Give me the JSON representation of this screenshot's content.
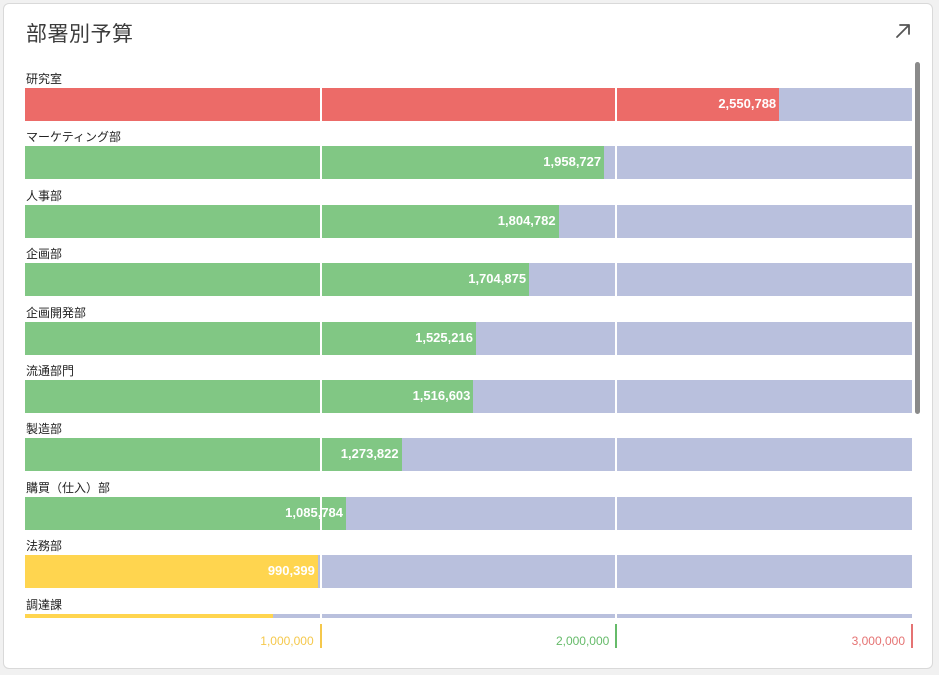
{
  "title": "部署別予算",
  "icons": {
    "expand": "arrow-up-right-icon"
  },
  "colors": {
    "red": "#ec6b68",
    "green": "#81c784",
    "yellow": "#ffd54f",
    "track": "#b9c0dd",
    "tick_yellow": "#f5c84c",
    "tick_green": "#66bb6a",
    "tick_red": "#e57373"
  },
  "chart_data": {
    "type": "bar",
    "orientation": "horizontal",
    "xlim": [
      0,
      3000000
    ],
    "thresholds": [
      {
        "value": 1000000,
        "label": "1,000,000",
        "color": "#f5c84c"
      },
      {
        "value": 2000000,
        "label": "2,000,000",
        "color": "#66bb6a"
      },
      {
        "value": 3000000,
        "label": "3,000,000",
        "color": "#e57373"
      }
    ],
    "bars": [
      {
        "category": "研究室",
        "value": 2550788,
        "label": "2,550,788",
        "color": "#ec6b68"
      },
      {
        "category": "マーケティング部",
        "value": 1958727,
        "label": "1,958,727",
        "color": "#81c784"
      },
      {
        "category": "人事部",
        "value": 1804782,
        "label": "1,804,782",
        "color": "#81c784"
      },
      {
        "category": "企画部",
        "value": 1704875,
        "label": "1,704,875",
        "color": "#81c784"
      },
      {
        "category": "企画開発部",
        "value": 1525216,
        "label": "1,525,216",
        "color": "#81c784"
      },
      {
        "category": "流通部門",
        "value": 1516603,
        "label": "1,516,603",
        "color": "#81c784"
      },
      {
        "category": "製造部",
        "value": 1273822,
        "label": "1,273,822",
        "color": "#81c784"
      },
      {
        "category": "購買（仕入）部",
        "value": 1085784,
        "label": "1,085,784",
        "color": "#81c784"
      },
      {
        "category": "法務部",
        "value": 990399,
        "label": "990,399",
        "color": "#ffd54f"
      },
      {
        "category": "調達課",
        "value": 840000,
        "label": "",
        "color": "#ffd54f"
      }
    ]
  }
}
